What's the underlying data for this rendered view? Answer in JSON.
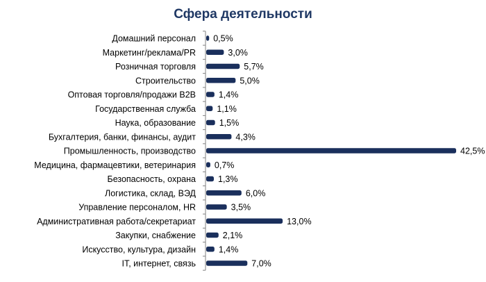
{
  "chart_data": {
    "type": "bar",
    "orientation": "horizontal",
    "title": "Сфера деятельности",
    "categories": [
      "Домашний персонал",
      "Маркетинг/реклама/PR",
      "Розничная торговля",
      "Строительство",
      "Оптовая торговля/продажи B2B",
      "Государственная служба",
      "Наука, образование",
      "Бухгалтерия, банки, финансы, аудит",
      "Промышленность, производство",
      "Медицина, фармацевтики, ветеринария",
      "Безопасность, охрана",
      "Логистика, склад, ВЭД",
      "Управление персоналом, HR",
      "Административная работа/секретариат",
      "Закупки, снабжение",
      "Искусство, культура, дизайн",
      "IT, интернет,  связь"
    ],
    "values": [
      0.5,
      3.0,
      5.7,
      5.0,
      1.4,
      1.1,
      1.5,
      4.3,
      42.5,
      0.7,
      1.3,
      6.0,
      3.5,
      13.0,
      2.1,
      1.4,
      7.0
    ],
    "value_labels": [
      "0,5%",
      "3,0%",
      "5,7%",
      "5,0%",
      "1,4%",
      "1,1%",
      "1,5%",
      "4,3%",
      "42,5%",
      "0,7%",
      "1,3%",
      "6,0%",
      "3,5%",
      "13,0%",
      "2,1%",
      "1,4%",
      "7,0%"
    ],
    "xlim": [
      0,
      42.5
    ],
    "grid": false,
    "colors": {
      "bar": "#1a2f5c",
      "title": "#1f3864",
      "axis": "#808080"
    }
  }
}
